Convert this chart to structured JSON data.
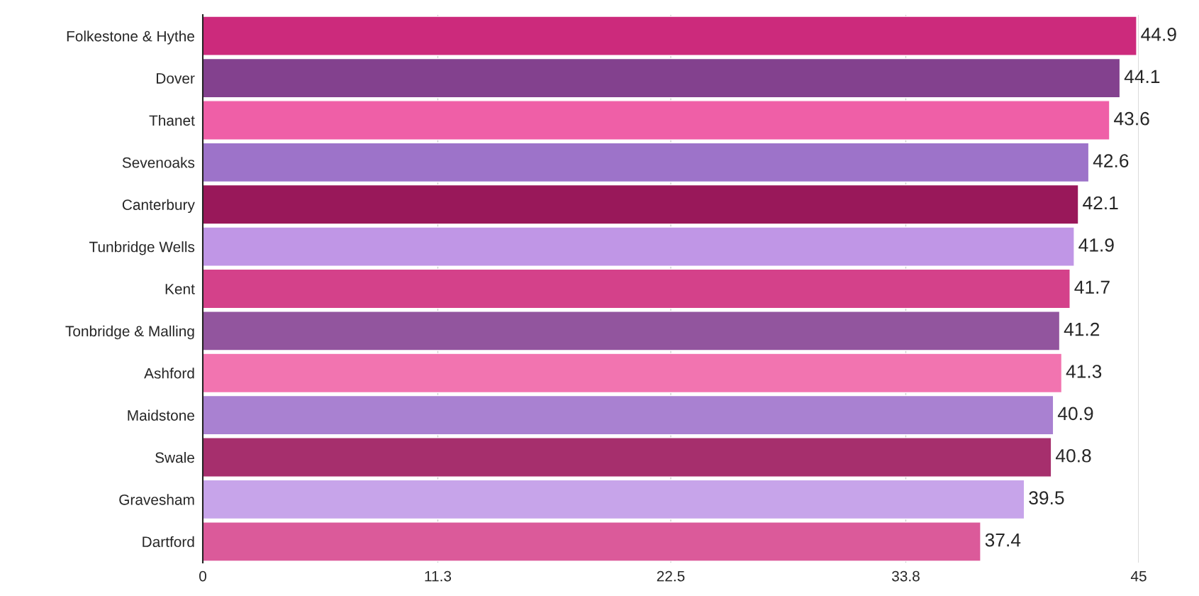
{
  "chart_data": {
    "type": "bar",
    "orientation": "horizontal",
    "categories": [
      "Folkestone & Hythe",
      "Dover",
      "Thanet",
      "Sevenoaks",
      "Canterbury",
      "Tunbridge Wells",
      "Kent",
      "Tonbridge & Malling",
      "Ashford",
      "Maidstone",
      "Swale",
      "Gravesham",
      "Dartford"
    ],
    "values": [
      44.9,
      44.1,
      43.6,
      42.6,
      42.1,
      41.9,
      41.7,
      41.2,
      41.3,
      40.9,
      40.8,
      39.5,
      37.4
    ],
    "colors": [
      "#cc2a7c",
      "#83418e",
      "#ef5fa7",
      "#9d73c9",
      "#99185a",
      "#c096e6",
      "#d4418a",
      "#92559e",
      "#f274b0",
      "#a981d1",
      "#a62f6d",
      "#c7a4ea",
      "#db5a9a"
    ],
    "xlim": [
      0,
      45
    ],
    "xticks": [
      0,
      11.3,
      22.5,
      33.8,
      45
    ],
    "grid": "x",
    "data_labels": true
  }
}
